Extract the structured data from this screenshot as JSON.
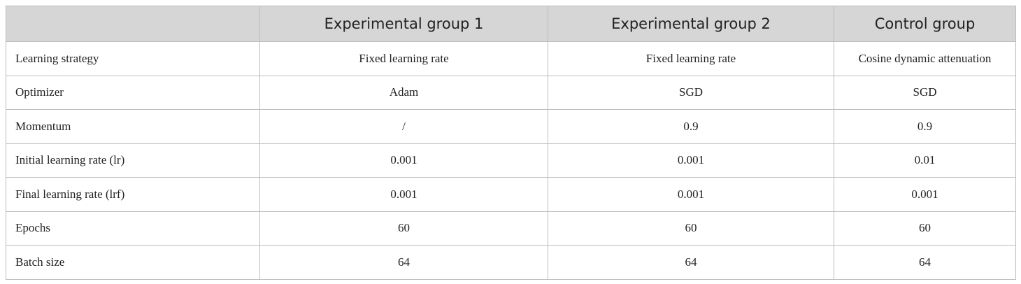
{
  "table": {
    "columns": [
      "Experimental group 1",
      "Experimental group 2",
      "Control group"
    ],
    "rows": [
      [
        "Learning strategy",
        "Fixed learning rate",
        "Fixed learning rate",
        "Cosine dynamic attenuation"
      ],
      [
        "Optimizer",
        "Adam",
        "SGD",
        "SGD"
      ],
      [
        "Momentum",
        "/",
        "0.9",
        "0.9"
      ],
      [
        "Initial learning rate (lr)",
        "0.001",
        "0.001",
        "0.01"
      ],
      [
        "Final learning rate (lrf)",
        "0.001",
        "0.001",
        "0.001"
      ],
      [
        "Epochs",
        "60",
        "60",
        "60"
      ],
      [
        "Batch size",
        "64",
        "64",
        "64"
      ]
    ]
  }
}
